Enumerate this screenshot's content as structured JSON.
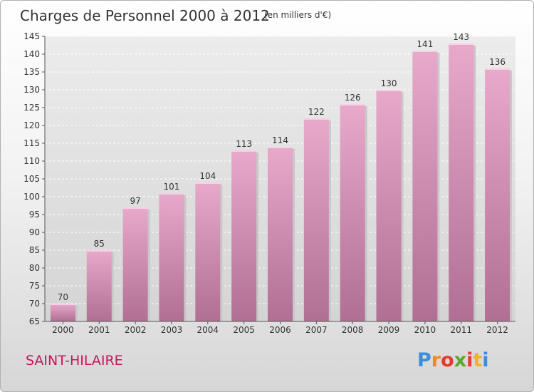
{
  "chart_data": {
    "type": "bar",
    "title": "Charges de Personnel 2000 à 2012",
    "subtitle": "(en milliers d'€)",
    "categories": [
      "2000",
      "2001",
      "2002",
      "2003",
      "2004",
      "2005",
      "2006",
      "2007",
      "2008",
      "2009",
      "2010",
      "2011",
      "2012"
    ],
    "values": [
      70,
      85,
      97,
      101,
      104,
      113,
      114,
      122,
      126,
      130,
      141,
      143,
      136
    ],
    "ylim": [
      65,
      145
    ],
    "yticks": [
      65,
      70,
      75,
      80,
      85,
      90,
      95,
      100,
      105,
      110,
      115,
      120,
      125,
      130,
      135,
      140,
      145
    ],
    "xlabel": "",
    "ylabel": "",
    "grid": true,
    "bar_color": "#cf86ad"
  },
  "commune": "SAINT-HILAIRE",
  "logo": {
    "letters": [
      "P",
      "r",
      "o",
      "x",
      "i",
      "t",
      "i"
    ],
    "colors": [
      "#3a8fd8",
      "#f08a1c",
      "#e8392a",
      "#5aa82c",
      "#e8392a",
      "#f0b41c",
      "#3a8fd8"
    ]
  }
}
